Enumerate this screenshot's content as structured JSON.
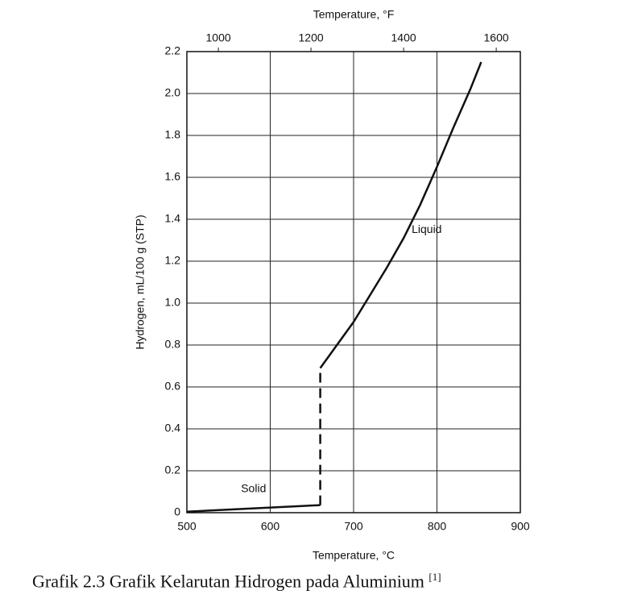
{
  "chart_data": {
    "type": "line",
    "x_label": "Temperature, °C",
    "x2_label": "Temperature, °F",
    "y_label": "Hydrogen, mL/100 g (STP)",
    "xlim": [
      500,
      900
    ],
    "xticks": [
      500,
      600,
      700,
      800,
      900
    ],
    "x2lim": [
      932,
      1652
    ],
    "x2ticks": [
      1000,
      1200,
      1400,
      1600
    ],
    "ylim": [
      0,
      2.2
    ],
    "yticks": [
      0,
      0.2,
      0.4,
      0.6,
      0.8,
      {
        "value": 1,
        "label": "1.0"
      },
      1.2,
      1.4,
      1.6,
      1.8,
      {
        "value": 2,
        "label": "2.0"
      },
      2.2
    ],
    "grid": true,
    "series": [
      {
        "name": "Solid",
        "color": "#111111",
        "style": "solid",
        "x": [
          500,
          660
        ],
        "values": [
          0.005,
          0.036
        ]
      },
      {
        "color": "#111111",
        "style": "dashed",
        "x": [
          660,
          660
        ],
        "values": [
          0.036,
          0.69
        ]
      },
      {
        "name": "Liquid",
        "color": "#111111",
        "style": "solid",
        "x": [
          660,
          680,
          700,
          720,
          740,
          760,
          780,
          800,
          820,
          840,
          853
        ],
        "values": [
          0.69,
          0.8,
          0.91,
          1.04,
          1.17,
          1.31,
          1.47,
          1.65,
          1.84,
          2.02,
          2.15
        ]
      }
    ]
  },
  "caption": {
    "text": "Grafik 2.3 Grafik Kelarutan Hidrogen pada Aluminium",
    "reference": "[1]"
  }
}
